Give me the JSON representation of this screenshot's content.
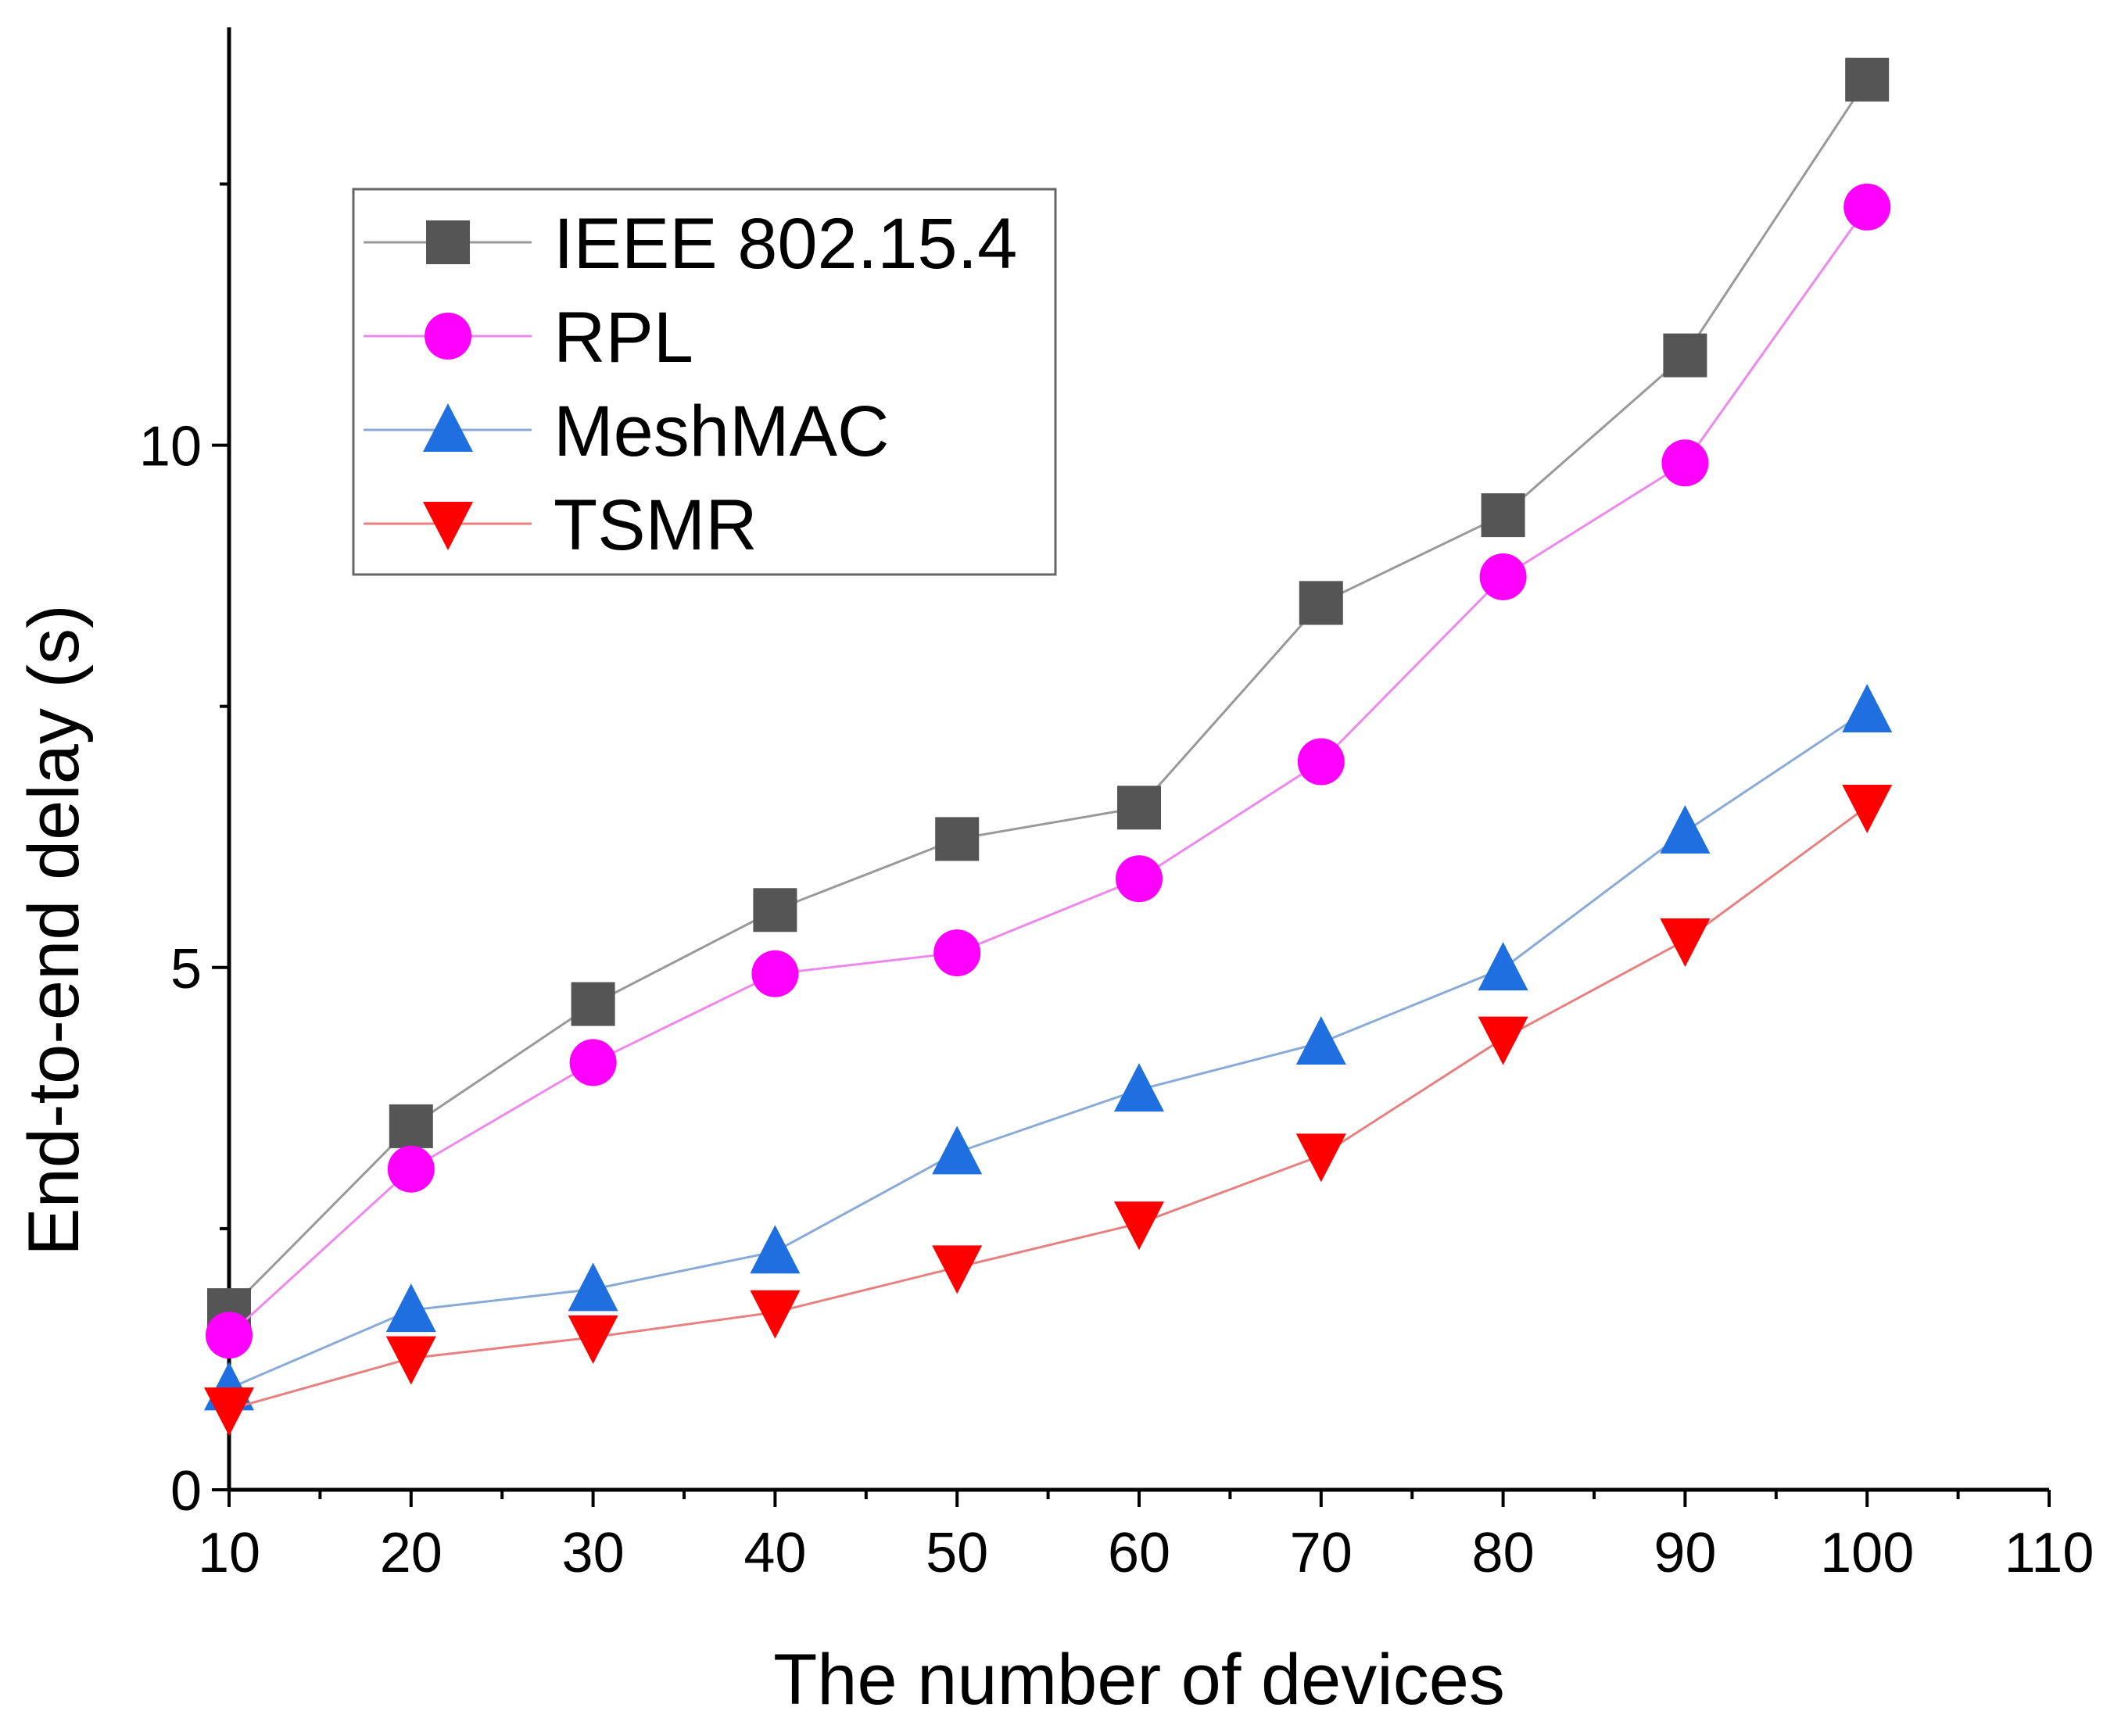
{
  "chart_data": {
    "type": "line",
    "title": "",
    "xlabel": "The number of devices",
    "ylabel": "End-to-end delay (s)",
    "xlim": [
      10,
      110
    ],
    "ylim": [
      0,
      14
    ],
    "xticks": [
      10,
      20,
      30,
      40,
      50,
      60,
      70,
      80,
      90,
      100,
      110
    ],
    "yticks": [
      0,
      5,
      10
    ],
    "grid": false,
    "legend_position": "top-left",
    "x": [
      10,
      20,
      30,
      40,
      50,
      60,
      70,
      80,
      90,
      100
    ],
    "series": [
      {
        "name": "IEEE 802.15.4",
        "marker": "square",
        "color": "#555555",
        "line_color": "#999999",
        "values": [
          1.72,
          3.48,
          4.65,
          5.55,
          6.23,
          6.53,
          8.49,
          9.33,
          10.86,
          13.5
        ]
      },
      {
        "name": "RPL",
        "marker": "circle",
        "color": "#ff00ff",
        "line_color": "#ee88ee",
        "values": [
          1.48,
          3.07,
          4.09,
          4.94,
          5.14,
          5.85,
          6.97,
          8.74,
          9.83,
          12.28
        ]
      },
      {
        "name": "MeshMAC",
        "marker": "triangle-up",
        "color": "#1f6fe0",
        "line_color": "#8aaad8",
        "values": [
          0.97,
          1.72,
          1.92,
          2.28,
          3.23,
          3.83,
          4.28,
          4.99,
          6.3,
          7.46
        ]
      },
      {
        "name": "TSMR",
        "marker": "triangle-down",
        "color": "#ff0000",
        "line_color": "#e88080",
        "values": [
          0.77,
          1.26,
          1.46,
          1.7,
          2.13,
          2.55,
          3.2,
          4.32,
          5.26,
          6.54
        ]
      }
    ]
  }
}
